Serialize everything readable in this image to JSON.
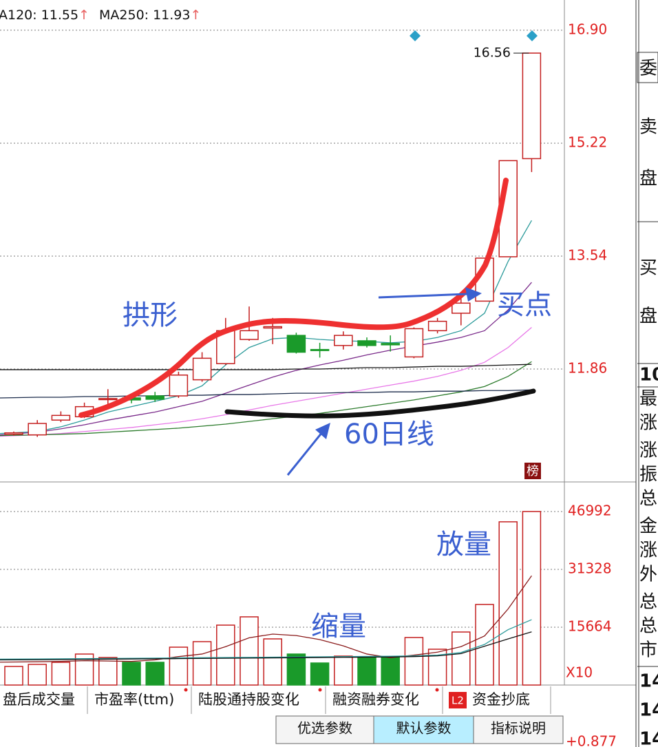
{
  "chart_data": [
    {
      "type": "candlestick",
      "categories": [
        null,
        null,
        null,
        null,
        null,
        null,
        null,
        null,
        null,
        null,
        null,
        null,
        null,
        null,
        null,
        null,
        null,
        null,
        null,
        null,
        null,
        null,
        null
      ],
      "open": [
        10.89,
        10.88,
        11.1,
        11.15,
        11.41,
        11.43,
        11.46,
        11.46,
        11.7,
        11.94,
        12.3,
        12.47,
        12.36,
        12.15,
        12.21,
        12.28,
        12.24,
        12.04,
        12.43,
        12.69,
        12.87,
        13.53,
        14.99
      ],
      "high": [
        10.93,
        11.1,
        11.23,
        11.36,
        11.56,
        11.48,
        11.52,
        11.82,
        12.11,
        12.62,
        12.79,
        12.62,
        12.4,
        12.25,
        12.42,
        12.33,
        12.36,
        12.48,
        12.62,
        12.96,
        13.51,
        14.96,
        16.56
      ],
      "low": [
        10.87,
        10.85,
        11.07,
        11.13,
        11.31,
        11.35,
        11.37,
        11.43,
        11.67,
        11.92,
        12.28,
        12.23,
        12.09,
        12.03,
        12.15,
        12.18,
        12.12,
        12.02,
        12.39,
        12.51,
        12.87,
        13.53,
        14.79
      ],
      "close": [
        10.91,
        11.05,
        11.17,
        11.3,
        11.42,
        11.4,
        11.41,
        11.77,
        12.02,
        12.43,
        12.43,
        12.49,
        12.11,
        12.14,
        12.36,
        12.21,
        12.22,
        12.46,
        12.57,
        12.84,
        13.51,
        14.96,
        16.56
      ],
      "up_color": "#c41e1e",
      "down_color": "#1a9a2a",
      "lines": [
        {
          "color": "#2a9a9a",
          "values": [
            10.9,
            10.93,
            11.0,
            11.1,
            11.22,
            11.3,
            11.38,
            11.46,
            11.61,
            11.92,
            12.18,
            12.31,
            12.33,
            12.3,
            12.28,
            12.27,
            12.25,
            12.27,
            12.33,
            12.43,
            12.69,
            13.46,
            14.07
          ]
        },
        {
          "color": "#7a2a8a",
          "values": [
            10.88,
            10.92,
            10.97,
            11.03,
            11.1,
            11.16,
            11.22,
            11.3,
            11.38,
            11.5,
            11.62,
            11.74,
            11.84,
            11.92,
            11.99,
            12.07,
            12.14,
            12.2,
            12.26,
            12.33,
            12.43,
            12.74,
            13.15
          ]
        },
        {
          "color": "#e878e8",
          "values": [
            10.86,
            10.88,
            10.9,
            10.93,
            10.96,
            10.99,
            11.03,
            11.07,
            11.12,
            11.18,
            11.25,
            11.32,
            11.38,
            11.44,
            11.5,
            11.56,
            11.62,
            11.68,
            11.75,
            11.84,
            11.96,
            12.18,
            12.48
          ]
        },
        {
          "color": "#2a7a2a",
          "values": [
            10.87,
            10.88,
            10.89,
            10.9,
            10.92,
            10.94,
            10.96,
            10.98,
            11.01,
            11.04,
            11.08,
            11.12,
            11.16,
            11.2,
            11.25,
            11.3,
            11.35,
            11.4,
            11.46,
            11.52,
            11.6,
            11.75,
            11.97
          ]
        },
        {
          "color": "#1a2a4a",
          "values": [
            11.43,
            11.44,
            11.44,
            11.45,
            11.45,
            11.46,
            11.46,
            11.47,
            11.47,
            11.48,
            11.48,
            11.49,
            11.5,
            11.5,
            11.51,
            11.51,
            11.52,
            11.52,
            11.53,
            11.53,
            11.54,
            11.54,
            11.55
          ]
        },
        {
          "color": "#111111",
          "values": [
            11.85,
            11.85,
            11.85,
            11.85,
            11.85,
            11.85,
            11.85,
            11.85,
            11.85,
            11.85,
            11.85,
            11.85,
            11.86,
            11.86,
            11.87,
            11.88,
            11.88,
            11.89,
            11.9,
            11.9,
            11.91,
            11.92,
            11.93
          ]
        }
      ],
      "legend": [
        {
          "name": "A120:",
          "value": 11.55,
          "arrow": "↑"
        },
        {
          "name": "MA250:",
          "value": 11.93,
          "arrow": "↑"
        }
      ],
      "max_label": 16.56,
      "ylim": [
        10.18,
        17.35
      ],
      "yticks": [
        11.86,
        13.54,
        15.22,
        {
          "value": 16.9,
          "label": "16.90"
        }
      ],
      "grid": true
    },
    {
      "type": "bar",
      "categories": [
        null,
        null,
        null,
        null,
        null,
        null,
        null,
        null,
        null,
        null,
        null,
        null,
        null,
        null,
        null,
        null,
        null,
        null,
        null,
        null,
        null,
        null,
        null
      ],
      "values": [
        5036,
        5595,
        6155,
        8393,
        7460,
        6155,
        6155,
        10258,
        11750,
        16226,
        18464,
        12496,
        8393,
        5968,
        7833,
        7460,
        7460,
        12869,
        9698,
        14361,
        21821,
        44201,
        46992
      ],
      "lines": [
        {
          "color": "#8a1a1a",
          "values": [
            6200,
            6300,
            6400,
            6600,
            6500,
            6400,
            6800,
            7700,
            8400,
            10400,
            12800,
            13800,
            13400,
            12300,
            10600,
            8400,
            7400,
            8100,
            8900,
            10400,
            13300,
            20600,
            29600
          ]
        },
        {
          "color": "#2a9a9a",
          "values": [
            7000,
            7050,
            7100,
            7150,
            7200,
            7250,
            7300,
            7350,
            7400,
            7450,
            7500,
            7550,
            7600,
            7650,
            7700,
            7750,
            7800,
            7900,
            8100,
            8800,
            11000,
            15000,
            17700
          ]
        },
        {
          "color": "#111111",
          "values": [
            6800,
            6850,
            6900,
            6950,
            7000,
            7050,
            7100,
            7150,
            7200,
            7250,
            7300,
            7350,
            7400,
            7450,
            7500,
            7550,
            7600,
            7700,
            7900,
            8500,
            10500,
            12500,
            14400
          ]
        }
      ],
      "multiplier_label": "X10",
      "ylim": [
        0,
        55000
      ],
      "yticks": [
        15664,
        31328,
        46992
      ],
      "grid": true
    }
  ],
  "annotations": {
    "arch": "拱形",
    "buy_point": "买点",
    "ma60": "60日线",
    "volume_up": "放量",
    "volume_down": "缩量",
    "badge": "榜"
  },
  "ui": {
    "tabs": [
      "盘后成交量",
      "市盈率(ttm)",
      "陆股通持股变化",
      "融资融券变化",
      "资金抄底"
    ],
    "l2_badge": "L2",
    "buttons": [
      "优选参数",
      "默认参数",
      "指标说明"
    ],
    "corner_value": "+0.877",
    "side_panel": [
      "委",
      "卖",
      "盘",
      "买",
      "盘",
      "10",
      "最",
      "涨",
      "涨",
      "振",
      "总",
      "金",
      "涨",
      "外",
      "总",
      "总",
      "市",
      "14",
      "14",
      "14"
    ]
  }
}
